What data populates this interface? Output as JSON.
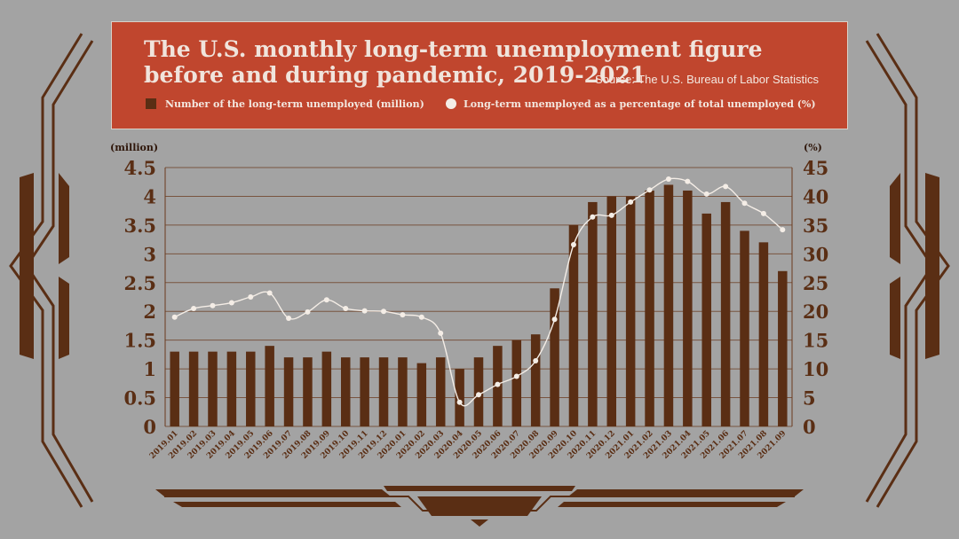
{
  "title": "The U.S. monthly long-term unemployment figure before and during pandemic, 2019-2021",
  "source": "Source: The U.S. Bureau of Labor Statistics",
  "colors": {
    "background": "#a3a3a3",
    "banner": "#c0462e",
    "bar": "#5a2e14",
    "line": "#f4ede6",
    "axis_text": "#5a2e14",
    "ornament": "#5a2e14"
  },
  "chart_data": {
    "type": "bar",
    "title": "The U.S. monthly long-term unemployment figure before and during pandemic, 2019-2021",
    "categories": [
      "2019.01",
      "2019.02",
      "2019.03",
      "2019.04",
      "2019.05",
      "2019.06",
      "2019.07",
      "2019.08",
      "2019.09",
      "2019.10",
      "2019.11",
      "2019.12",
      "2020.01",
      "2020.02",
      "2020.03",
      "2020.04",
      "2020.05",
      "2020.06",
      "2020.07",
      "2020.08",
      "2020.09",
      "2020.10",
      "2020.11",
      "2020.12",
      "2021.01",
      "2021.02",
      "2021.03",
      "2021.04",
      "2021.05",
      "2021.06",
      "2021.07",
      "2021.08",
      "2021.09"
    ],
    "series": [
      {
        "name": "Number of the long-term unemployed (million)",
        "type": "bar",
        "axis": "left",
        "values": [
          1.3,
          1.3,
          1.3,
          1.3,
          1.3,
          1.4,
          1.2,
          1.2,
          1.3,
          1.2,
          1.2,
          1.2,
          1.2,
          1.1,
          1.2,
          1.0,
          1.2,
          1.4,
          1.5,
          1.6,
          2.4,
          3.5,
          3.9,
          4.0,
          4.0,
          4.1,
          4.2,
          4.1,
          3.7,
          3.9,
          3.4,
          3.2,
          2.7
        ]
      },
      {
        "name": "Long-term unemployed as a percentage of total unemployed (%)",
        "type": "line",
        "axis": "right",
        "values": [
          19.0,
          20.5,
          21.0,
          21.5,
          22.5,
          23.2,
          18.8,
          19.9,
          22.0,
          20.5,
          20.1,
          20.0,
          19.4,
          19.0,
          16.2,
          4.2,
          5.5,
          7.3,
          8.7,
          11.4,
          18.6,
          31.6,
          36.4,
          36.7,
          39.0,
          41.1,
          43.0,
          42.6,
          40.4,
          41.7,
          38.8,
          37.0,
          34.2
        ]
      }
    ],
    "y_left": {
      "label": "(million)",
      "min": 0,
      "max": 4.5,
      "ticks": [
        "0",
        "0.5",
        "1",
        "1.5",
        "2",
        "2.5",
        "3",
        "3.5",
        "4",
        "4.5"
      ]
    },
    "y_right": {
      "label": "(%)",
      "min": 0,
      "max": 45,
      "ticks": [
        "0",
        "5",
        "10",
        "15",
        "20",
        "25",
        "30",
        "35",
        "40",
        "45"
      ]
    },
    "grid": true
  }
}
